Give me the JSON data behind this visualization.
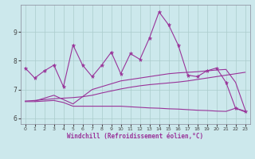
{
  "xlabel": "Windchill (Refroidissement éolien,°C)",
  "bg_color": "#cce8ec",
  "line_color": "#993399",
  "grid_color": "#aacccc",
  "xlim": [
    -0.5,
    23.5
  ],
  "ylim": [
    5.8,
    9.95
  ],
  "yticks": [
    6,
    7,
    8,
    9
  ],
  "xticks": [
    0,
    1,
    2,
    3,
    4,
    5,
    6,
    7,
    8,
    9,
    10,
    11,
    12,
    13,
    14,
    15,
    16,
    17,
    18,
    19,
    20,
    21,
    22,
    23
  ],
  "series1_x": [
    0,
    1,
    2,
    3,
    4,
    5,
    6,
    7,
    8,
    9,
    10,
    11,
    12,
    13,
    14,
    15,
    16,
    17,
    18,
    19,
    20,
    21,
    22,
    23
  ],
  "series1_y": [
    7.75,
    7.4,
    7.65,
    7.85,
    7.1,
    8.55,
    7.85,
    7.45,
    7.85,
    8.3,
    7.55,
    8.25,
    8.05,
    8.8,
    9.7,
    9.25,
    8.55,
    7.5,
    7.45,
    7.65,
    7.75,
    7.25,
    6.35,
    6.25
  ],
  "series2_x": [
    1,
    2,
    3,
    4,
    5,
    6,
    7,
    8,
    9,
    10,
    11,
    12,
    13,
    14,
    15,
    16,
    17,
    18,
    19,
    20,
    21,
    22,
    23
  ],
  "series2_y": [
    6.6,
    6.7,
    6.8,
    6.65,
    6.5,
    6.75,
    7.0,
    7.1,
    7.2,
    7.3,
    7.35,
    7.4,
    7.45,
    7.5,
    7.55,
    7.58,
    7.6,
    7.62,
    7.65,
    7.68,
    7.7,
    7.25,
    6.3
  ],
  "series3_x": [
    0,
    1,
    2,
    3,
    4,
    5,
    6,
    7,
    8,
    9,
    10,
    11,
    12,
    13,
    14,
    15,
    16,
    17,
    18,
    19,
    20,
    21,
    22,
    23
  ],
  "series3_y": [
    6.6,
    6.62,
    6.65,
    6.68,
    6.7,
    6.72,
    6.75,
    6.8,
    6.88,
    6.95,
    7.02,
    7.08,
    7.13,
    7.17,
    7.2,
    7.23,
    7.26,
    7.3,
    7.35,
    7.4,
    7.45,
    7.5,
    7.55,
    7.6
  ],
  "series4_x": [
    0,
    1,
    2,
    3,
    4,
    5,
    6,
    7,
    8,
    9,
    10,
    11,
    12,
    13,
    14,
    15,
    16,
    17,
    18,
    19,
    20,
    21,
    22,
    23
  ],
  "series4_y": [
    6.58,
    6.58,
    6.6,
    6.62,
    6.55,
    6.42,
    6.42,
    6.42,
    6.42,
    6.42,
    6.42,
    6.4,
    6.38,
    6.36,
    6.35,
    6.33,
    6.32,
    6.3,
    6.28,
    6.27,
    6.25,
    6.24,
    6.35,
    6.22
  ]
}
